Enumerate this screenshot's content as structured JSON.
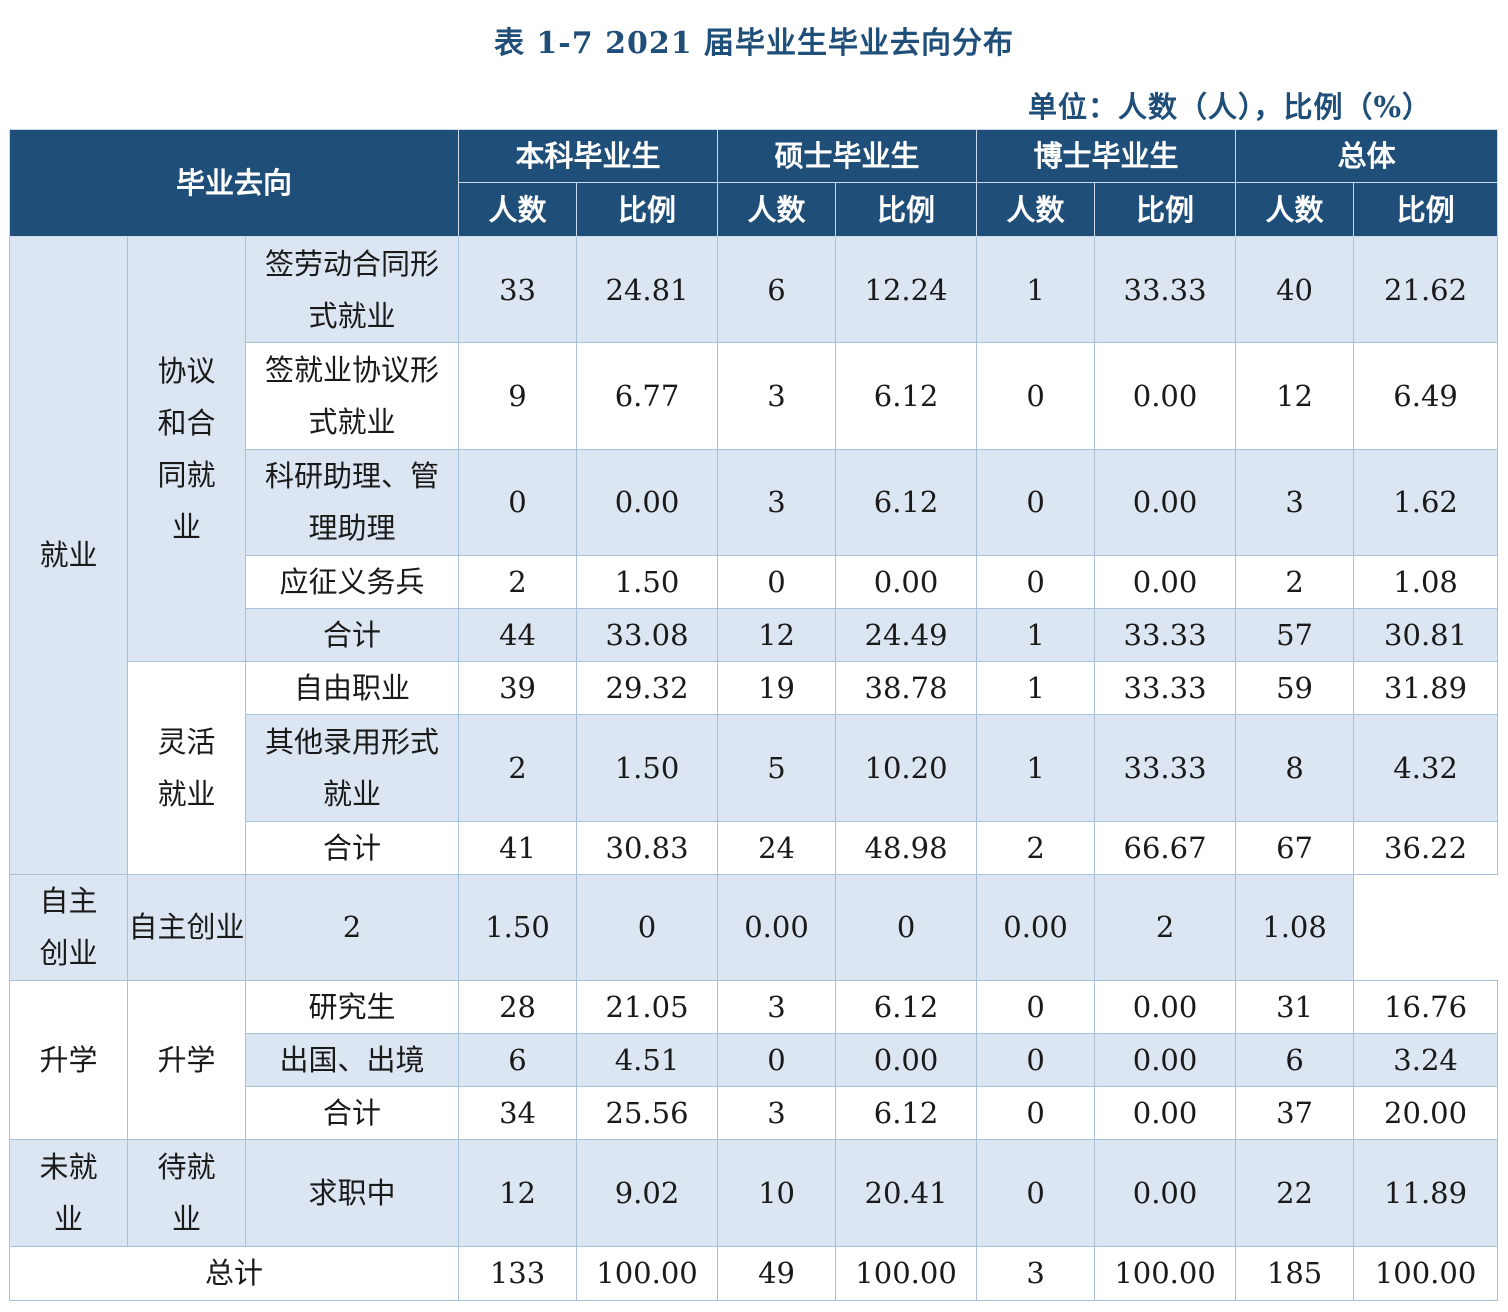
{
  "title": "表 1-7 2021 届毕业生毕业去向分布",
  "unit": "单位：人数（人），比例（%）",
  "header": {
    "destination": "毕业去向",
    "groups": [
      "本科毕业生",
      "硕士毕业生",
      "博士毕业生",
      "总体"
    ],
    "sub": [
      "人数",
      "比例"
    ]
  },
  "categories": {
    "employment": "就业",
    "agreement": "协议和合同就业",
    "flexible": "灵活就业",
    "self": "自主创业",
    "study": "升学",
    "study_sub": "升学",
    "unemployed": "未就业",
    "waiting": "待就业"
  },
  "rows": [
    {
      "label": "签劳动合同形式就业",
      "values": [
        "33",
        "24.81",
        "6",
        "12.24",
        "1",
        "33.33",
        "40",
        "21.62"
      ]
    },
    {
      "label": "签就业协议形式就业",
      "values": [
        "9",
        "6.77",
        "3",
        "6.12",
        "0",
        "0.00",
        "12",
        "6.49"
      ]
    },
    {
      "label": "科研助理、管理助理",
      "values": [
        "0",
        "0.00",
        "3",
        "6.12",
        "0",
        "0.00",
        "3",
        "1.62"
      ]
    },
    {
      "label": "应征义务兵",
      "values": [
        "2",
        "1.50",
        "0",
        "0.00",
        "0",
        "0.00",
        "2",
        "1.08"
      ]
    },
    {
      "label": "合计",
      "values": [
        "44",
        "33.08",
        "12",
        "24.49",
        "1",
        "33.33",
        "57",
        "30.81"
      ]
    },
    {
      "label": "自由职业",
      "values": [
        "39",
        "29.32",
        "19",
        "38.78",
        "1",
        "33.33",
        "59",
        "31.89"
      ]
    },
    {
      "label": "其他录用形式就业",
      "values": [
        "2",
        "1.50",
        "5",
        "10.20",
        "1",
        "33.33",
        "8",
        "4.32"
      ]
    },
    {
      "label": "合计",
      "values": [
        "41",
        "30.83",
        "24",
        "48.98",
        "2",
        "66.67",
        "67",
        "36.22"
      ]
    },
    {
      "label": "自主创业",
      "values": [
        "2",
        "1.50",
        "0",
        "0.00",
        "0",
        "0.00",
        "2",
        "1.08"
      ]
    },
    {
      "label": "研究生",
      "values": [
        "28",
        "21.05",
        "3",
        "6.12",
        "0",
        "0.00",
        "31",
        "16.76"
      ]
    },
    {
      "label": "出国、出境",
      "values": [
        "6",
        "4.51",
        "0",
        "0.00",
        "0",
        "0.00",
        "6",
        "3.24"
      ]
    },
    {
      "label": "合计",
      "values": [
        "34",
        "25.56",
        "3",
        "6.12",
        "0",
        "0.00",
        "37",
        "20.00"
      ]
    },
    {
      "label": "求职中",
      "values": [
        "12",
        "9.02",
        "10",
        "20.41",
        "0",
        "0.00",
        "22",
        "11.89"
      ]
    }
  ],
  "total": {
    "label": "总计",
    "values": [
      "133",
      "100.00",
      "49",
      "100.00",
      "3",
      "100.00",
      "185",
      "100.00"
    ]
  },
  "colors": {
    "header_bg": "#1f4e79",
    "title": "#1f4e79",
    "band": "#dce6f2",
    "border": "#a9c0db"
  }
}
